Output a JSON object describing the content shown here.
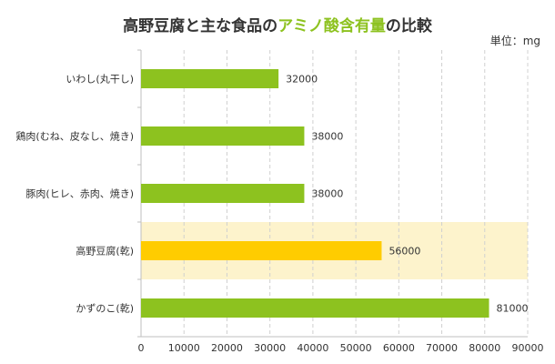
{
  "chart_data": {
    "type": "bar",
    "orientation": "horizontal",
    "title_prefix": "高野豆腐と主な食品の",
    "title_highlight": "アミノ酸含有量",
    "title_suffix": "の比較",
    "unit_label": "単位：mg",
    "categories": [
      "いわし(丸干し)",
      "鶏肉(むね、皮なし、焼き)",
      "豚肉(ヒレ、赤肉、焼き)",
      "高野豆腐(乾)",
      "かずのこ(乾)"
    ],
    "values": [
      32000,
      38000,
      38000,
      56000,
      81000
    ],
    "data_labels": [
      "32000",
      "38000",
      "38000",
      "56000",
      "81000"
    ],
    "highlight_index": 3,
    "xlim": [
      0,
      90000
    ],
    "x_ticks": [
      "0",
      "10000",
      "20000",
      "30000",
      "40000",
      "50000",
      "60000",
      "70000",
      "80000",
      "90000"
    ],
    "grid": "vertical-dashed",
    "colors": {
      "bar": "#8dc21f",
      "highlight_bar": "#ffcc00",
      "highlight_band": "#fdf3cc",
      "title_accent": "#8dc21f",
      "grid": "#d0d0d0",
      "text": "#333333"
    }
  }
}
